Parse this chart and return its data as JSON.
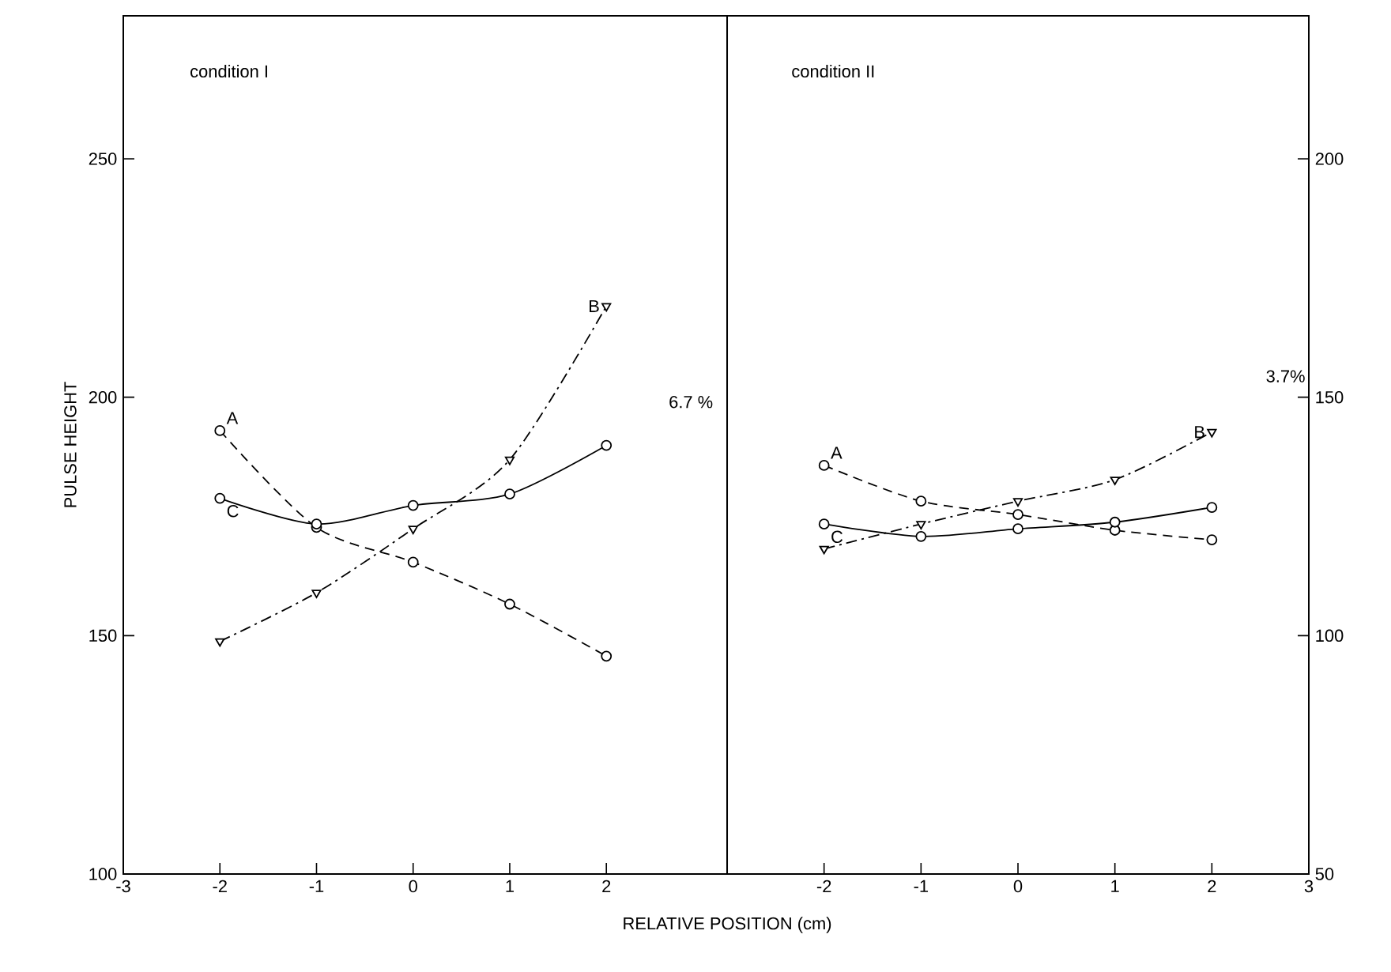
{
  "chart_data": [
    {
      "type": "line",
      "title": "condition I",
      "xlabel": "RELATIVE POSITION (cm)",
      "ylabel": "PULSE HEIGHT",
      "x": [
        -2,
        -1,
        0,
        1,
        2
      ],
      "series": [
        {
          "name": "A",
          "color": "#000000",
          "values": [
            193,
            172.7,
            165.4,
            156.6,
            145.7
          ],
          "marker": "circle",
          "line_style": "dashed"
        },
        {
          "name": "B",
          "color": "#000000",
          "values": [
            148.8,
            159,
            172.4,
            186.9,
            219.1
          ],
          "marker": "triangle",
          "line_style": "dashdot"
        },
        {
          "name": "C",
          "color": "#000000",
          "values": [
            178.8,
            173.4,
            177.3,
            179.7,
            189.9
          ],
          "marker": "circle",
          "line_style": "solid"
        }
      ],
      "xlim": [
        -3,
        3.25
      ],
      "xticks": [
        -3,
        -2,
        -1,
        0,
        1,
        2
      ],
      "ylim": [
        100,
        280
      ],
      "yticks": [
        100,
        150,
        200,
        250
      ],
      "annotations": [
        "6.7 %"
      ],
      "grid": false
    },
    {
      "type": "line",
      "title": "condition II",
      "x": [
        -2,
        -1,
        0,
        1,
        2
      ],
      "series": [
        {
          "name": "A",
          "color": "#000000",
          "values": [
            135.7,
            128.2,
            125.4,
            122.1,
            120.1
          ],
          "marker": "circle",
          "line_style": "dashed"
        },
        {
          "name": "B",
          "color": "#000000",
          "values": [
            118.2,
            123.4,
            128.2,
            132.7,
            142.7
          ],
          "marker": "triangle",
          "line_style": "dashdot"
        },
        {
          "name": "C",
          "color": "#000000",
          "values": [
            123.4,
            120.8,
            122.4,
            123.8,
            126.9
          ],
          "marker": "circle",
          "line_style": "solid"
        }
      ],
      "xlim": [
        -3,
        3
      ],
      "xticks": [
        -2,
        -1,
        0,
        1,
        2,
        3
      ],
      "ylim": [
        50,
        230
      ],
      "yticks": [
        50,
        100,
        150,
        200
      ],
      "annotations": [
        "3.7%"
      ],
      "grid": false
    }
  ]
}
